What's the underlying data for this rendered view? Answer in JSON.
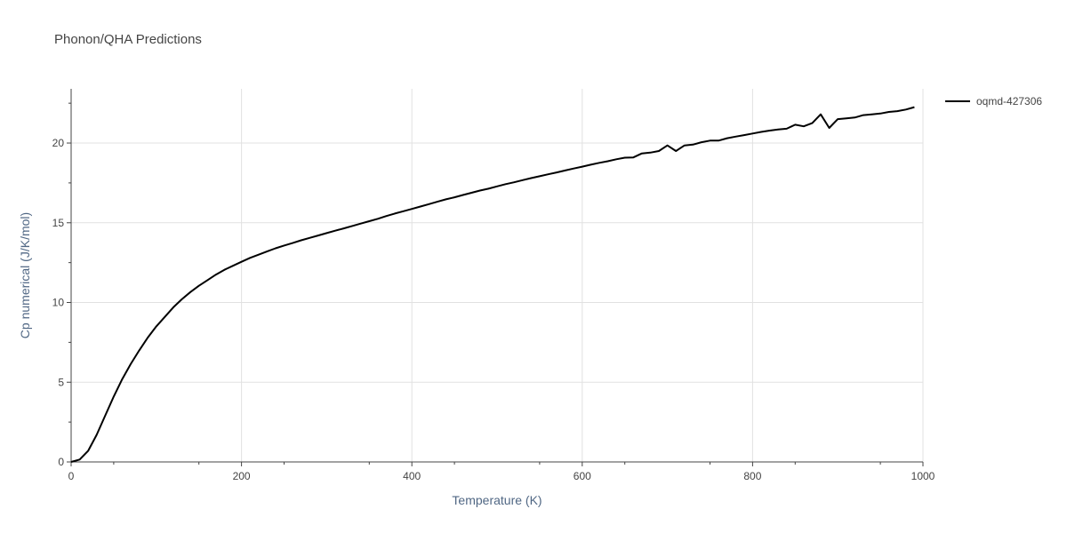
{
  "chart_data": {
    "type": "line",
    "title": "Phonon/QHA Predictions",
    "xlabel": "Temperature (K)",
    "ylabel": "Cp numerical (J/K/mol)",
    "xlim": [
      0,
      1000
    ],
    "ylim": [
      0,
      23.4
    ],
    "xticks": [
      0,
      200,
      400,
      600,
      800,
      1000
    ],
    "yticks": [
      0,
      5,
      10,
      15,
      20
    ],
    "grid": true,
    "legend_position": "top-right",
    "series": [
      {
        "name": "oqmd-427306",
        "color": "#000000",
        "x": [
          0,
          10,
          20,
          30,
          40,
          50,
          60,
          70,
          80,
          90,
          100,
          110,
          120,
          130,
          140,
          150,
          160,
          170,
          180,
          190,
          200,
          210,
          220,
          230,
          240,
          250,
          260,
          270,
          280,
          290,
          300,
          310,
          320,
          330,
          340,
          350,
          360,
          370,
          380,
          390,
          400,
          410,
          420,
          430,
          440,
          450,
          460,
          470,
          480,
          490,
          500,
          510,
          520,
          530,
          540,
          550,
          560,
          570,
          580,
          590,
          600,
          610,
          620,
          630,
          640,
          650,
          660,
          670,
          680,
          690,
          700,
          710,
          720,
          730,
          740,
          750,
          760,
          770,
          780,
          790,
          800,
          810,
          820,
          830,
          840,
          850,
          860,
          870,
          880,
          890,
          900,
          910,
          920,
          930,
          940,
          950,
          960,
          970,
          980,
          990
        ],
        "y": [
          0,
          0.15,
          0.7,
          1.7,
          2.9,
          4.1,
          5.2,
          6.15,
          7.0,
          7.8,
          8.5,
          9.1,
          9.7,
          10.2,
          10.65,
          11.05,
          11.4,
          11.75,
          12.05,
          12.3,
          12.55,
          12.8,
          13.0,
          13.2,
          13.4,
          13.57,
          13.73,
          13.9,
          14.05,
          14.2,
          14.35,
          14.5,
          14.65,
          14.8,
          14.95,
          15.1,
          15.25,
          15.42,
          15.58,
          15.72,
          15.87,
          16.02,
          16.17,
          16.32,
          16.47,
          16.6,
          16.74,
          16.88,
          17.02,
          17.14,
          17.28,
          17.42,
          17.54,
          17.67,
          17.8,
          17.92,
          18.04,
          18.16,
          18.28,
          18.4,
          18.52,
          18.64,
          18.76,
          18.86,
          18.98,
          19.08,
          19.1,
          19.35,
          19.4,
          19.5,
          19.85,
          19.5,
          19.85,
          19.9,
          20.05,
          20.15,
          20.15,
          20.3,
          20.4,
          20.5,
          20.6,
          20.7,
          20.78,
          20.85,
          20.9,
          21.15,
          21.05,
          21.25,
          21.8,
          20.95,
          21.5,
          21.55,
          21.6,
          21.75,
          21.8,
          21.85,
          21.95,
          22.0,
          22.1,
          22.25
        ]
      }
    ]
  }
}
